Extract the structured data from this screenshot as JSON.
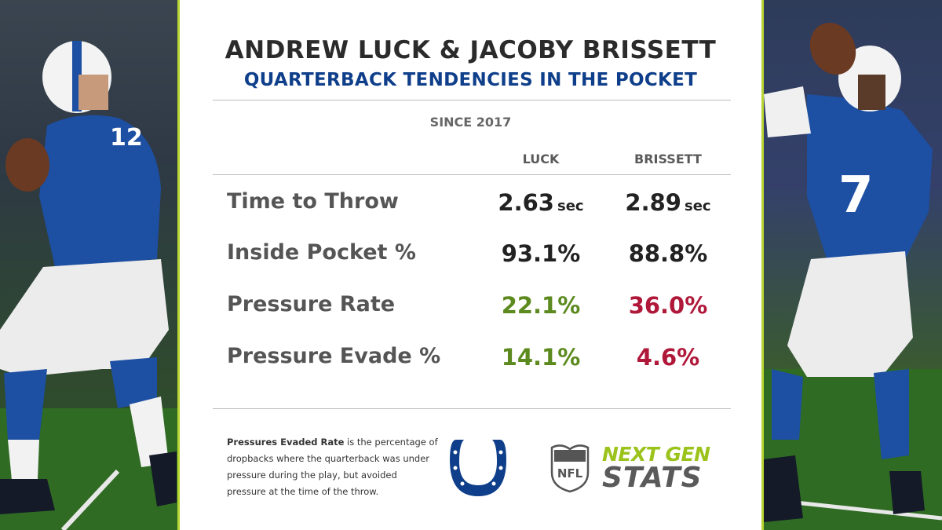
{
  "title": "ANDREW LUCK & JACOBY BRISSETT",
  "subtitle": "QUARTERBACK TENDENCIES IN THE POCKET",
  "since": "SINCE 2017",
  "columns": [
    "LUCK",
    "BRISSETT"
  ],
  "rows": [
    {
      "label": "Time to Throw",
      "luck": "2.63",
      "luck_unit": "sec",
      "brissett": "2.89",
      "brissett_unit": "sec"
    },
    {
      "label": "Inside Pocket %",
      "luck": "93.1%",
      "brissett": "88.8%"
    },
    {
      "label": "Pressure Rate",
      "luck": "22.1%",
      "brissett": "36.0%"
    },
    {
      "label": "Pressure Evade %",
      "luck": "14.1%",
      "brissett": "4.6%"
    }
  ],
  "footnote": {
    "bold": "Pressures Evaded Rate",
    "text": " is the percentage of dropbacks where the quarterback was under pressure during the play, but avoided pressure at the time of the throw."
  },
  "logos": {
    "team": "colts-horseshoe-icon",
    "league": "nfl-shield-icon",
    "brand_line1": "NEXT GEN",
    "brand_line2": "STATS"
  },
  "left_jersey_number": "12",
  "right_jersey_number": "7",
  "colors": {
    "accent": "#b9d532",
    "title": "#2b2b2b",
    "subtitle": "#0f3f8a",
    "good": "#5c8a1f",
    "bad": "#b0183a",
    "colts_blue": "#0f3f8a"
  }
}
